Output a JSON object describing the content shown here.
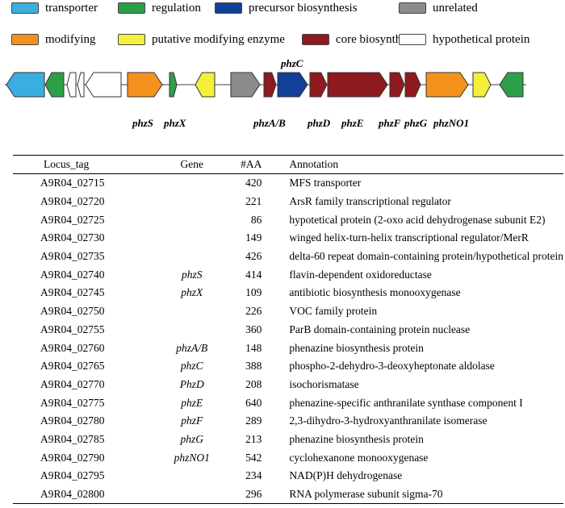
{
  "legend": [
    {
      "label": "transporter",
      "color": "#3aafdf"
    },
    {
      "label": "regulation",
      "color": "#2ca048"
    },
    {
      "label": "precursor biosynthesis",
      "color": "#123f98"
    },
    {
      "label": "unrelated",
      "color": "#8c8c8c"
    },
    {
      "label": "modifying",
      "color": "#f5921e"
    },
    {
      "label": "putative modifying enzyme",
      "color": "#f4ef3a"
    },
    {
      "label": "core biosynthesis",
      "color": "#8e1a1f"
    },
    {
      "label": "hypothetical protein",
      "color": "#ffffff"
    }
  ],
  "gene_map": {
    "genes": [
      {
        "category": "transporter",
        "direction": "left"
      },
      {
        "category": "regulation",
        "direction": "left"
      },
      {
        "category": "hypothetical protein",
        "direction": "left"
      },
      {
        "category": "hypothetical protein",
        "direction": "left"
      },
      {
        "category": "hypothetical protein",
        "direction": "left"
      },
      {
        "category": "modifying",
        "direction": "right"
      },
      {
        "category": "regulation",
        "direction": "right"
      },
      {
        "category": "putative modifying enzyme",
        "direction": "left"
      },
      {
        "category": "unrelated",
        "direction": "right"
      },
      {
        "category": "core biosynthesis",
        "direction": "right"
      },
      {
        "category": "precursor biosynthesis",
        "direction": "right"
      },
      {
        "category": "core biosynthesis",
        "direction": "right"
      },
      {
        "category": "core biosynthesis",
        "direction": "right"
      },
      {
        "category": "core biosynthesis",
        "direction": "right"
      },
      {
        "category": "core biosynthesis",
        "direction": "right"
      },
      {
        "category": "modifying",
        "direction": "right"
      },
      {
        "category": "putative modifying enzyme",
        "direction": "right"
      },
      {
        "category": "regulation",
        "direction": "left"
      }
    ],
    "labels": {
      "phzC": "phzC",
      "phzS": "phzS",
      "phzX": "phzX",
      "phzAB": "phzA/B",
      "phzD": "phzD",
      "phzE": "phzE",
      "phzF": "phzF",
      "phzG": "phzG",
      "phzNO1": "phzNO1"
    }
  },
  "table": {
    "headers": {
      "locus": "Locus_tag",
      "gene": "Gene",
      "aa": "#AA",
      "annotation": "Annotation"
    },
    "rows": [
      {
        "locus": "A9R04_02715",
        "gene": "",
        "aa": "420",
        "annotation": "MFS transporter"
      },
      {
        "locus": "A9R04_02720",
        "gene": "",
        "aa": "221",
        "annotation": "ArsR family transcriptional regulator"
      },
      {
        "locus": "A9R04_02725",
        "gene": "",
        "aa": "86",
        "annotation": "hypotetical protein (2-oxo acid dehydrogenase subunit E2)"
      },
      {
        "locus": "A9R04_02730",
        "gene": "",
        "aa": "149",
        "annotation": "winged helix-turn-helix transcriptional regulator/MerR"
      },
      {
        "locus": "A9R04_02735",
        "gene": "",
        "aa": "426",
        "annotation": "delta-60 repeat domain-containing protein/hypothetical protein"
      },
      {
        "locus": "A9R04_02740",
        "gene": "phzS",
        "aa": "414",
        "annotation": "flavin-dependent oxidoreductase"
      },
      {
        "locus": "A9R04_02745",
        "gene": "phzX",
        "aa": "109",
        "annotation": "antibiotic biosynthesis monooxygenase"
      },
      {
        "locus": "A9R04_02750",
        "gene": "",
        "aa": "226",
        "annotation": "VOC family protein"
      },
      {
        "locus": "A9R04_02755",
        "gene": "",
        "aa": "360",
        "annotation": "ParB domain-containing protein nuclease"
      },
      {
        "locus": "A9R04_02760",
        "gene": "phzA/B",
        "aa": "148",
        "annotation": "phenazine biosynthesis protein"
      },
      {
        "locus": "A9R04_02765",
        "gene": "phzC",
        "aa": "388",
        "annotation": "phospho-2-dehydro-3-deoxyheptonate aldolase"
      },
      {
        "locus": "A9R04_02770",
        "gene": "PhzD",
        "aa": "208",
        "annotation": "isochorismatase"
      },
      {
        "locus": "A9R04_02775",
        "gene": "phzE",
        "aa": "640",
        "annotation": "phenazine-specific anthranilate synthase component I"
      },
      {
        "locus": "A9R04_02780",
        "gene": "phzF",
        "aa": "289",
        "annotation": "2,3-dihydro-3-hydroxyanthranilate isomerase"
      },
      {
        "locus": "A9R04_02785",
        "gene": "phzG",
        "aa": "213",
        "annotation": "phenazine biosynthesis protein"
      },
      {
        "locus": "A9R04_02790",
        "gene": "phzNO1",
        "aa": "542",
        "annotation": "cyclohexanone monooxygenase"
      },
      {
        "locus": "A9R04_02795",
        "gene": "",
        "aa": "234",
        "annotation": "NAD(P)H dehydrogenase"
      },
      {
        "locus": "A9R04_02800",
        "gene": "",
        "aa": "296",
        "annotation": "RNA polymerase subunit sigma-70"
      }
    ]
  }
}
